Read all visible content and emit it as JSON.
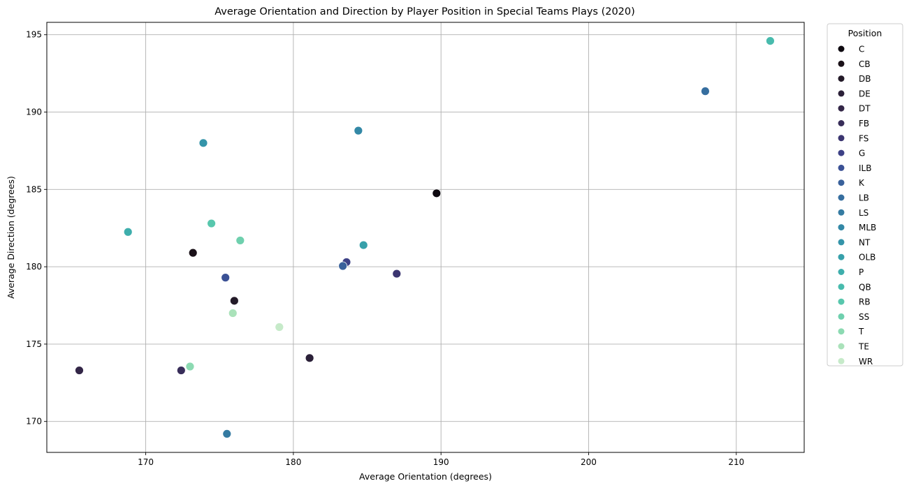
{
  "chart_data": {
    "type": "scatter",
    "title": "Average Orientation and Direction by Player Position in Special Teams Plays (2020)",
    "xlabel": "Average Orientation (degrees)",
    "ylabel": "Average Direction (degrees)",
    "xlim": [
      163.3,
      214.6
    ],
    "ylim": [
      168.0,
      195.8
    ],
    "xticks": [
      170,
      180,
      190,
      200,
      210
    ],
    "yticks": [
      170,
      175,
      180,
      185,
      190,
      195
    ],
    "grid": true,
    "legend": {
      "title": "Position",
      "placement": "outside-right-top"
    },
    "series": [
      {
        "name": "C",
        "color": "#0e0a10",
        "x": 189.7,
        "y": 184.75
      },
      {
        "name": "CB",
        "color": "#1a1118",
        "x": 173.2,
        "y": 180.9
      },
      {
        "name": "DB",
        "color": "#231a28",
        "x": 176.0,
        "y": 177.8
      },
      {
        "name": "DE",
        "color": "#2b2038",
        "x": 181.1,
        "y": 174.1
      },
      {
        "name": "DT",
        "color": "#332647",
        "x": 165.5,
        "y": 173.3
      },
      {
        "name": "FB",
        "color": "#382d59",
        "x": 172.4,
        "y": 173.3
      },
      {
        "name": "FS",
        "color": "#3b3570",
        "x": 187.0,
        "y": 179.55
      },
      {
        "name": "G",
        "color": "#3d4186",
        "x": 183.6,
        "y": 180.3
      },
      {
        "name": "ILB",
        "color": "#3b5195",
        "x": 175.4,
        "y": 179.3
      },
      {
        "name": "K",
        "color": "#39619b",
        "x": 183.35,
        "y": 180.05
      },
      {
        "name": "LB",
        "color": "#366e9f",
        "x": 207.9,
        "y": 191.35
      },
      {
        "name": "LS",
        "color": "#357ba2",
        "x": 175.5,
        "y": 169.2
      },
      {
        "name": "MLB",
        "color": "#3388a6",
        "x": 184.4,
        "y": 188.8
      },
      {
        "name": "NT",
        "color": "#3494a9",
        "x": 173.9,
        "y": 188.0
      },
      {
        "name": "OLB",
        "color": "#37a0aa",
        "x": 184.75,
        "y": 181.4
      },
      {
        "name": "P",
        "color": "#3eaeac",
        "x": 168.8,
        "y": 182.25
      },
      {
        "name": "QB",
        "color": "#48bbad",
        "x": 212.3,
        "y": 194.6
      },
      {
        "name": "RB",
        "color": "#58c7ad",
        "x": 174.45,
        "y": 182.8
      },
      {
        "name": "SS",
        "color": "#6fd0ae",
        "x": 176.4,
        "y": 181.7
      },
      {
        "name": "T",
        "color": "#8cdab2",
        "x": 173.0,
        "y": 173.55
      },
      {
        "name": "TE",
        "color": "#aae2ba",
        "x": 175.9,
        "y": 177.0
      },
      {
        "name": "WR",
        "color": "#c6eac9",
        "x": 179.05,
        "y": 176.1
      }
    ]
  }
}
